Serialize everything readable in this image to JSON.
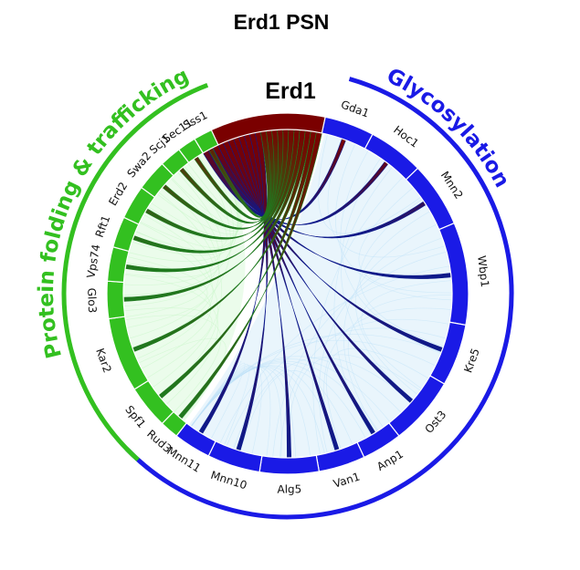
{
  "title": "Erd1 PSN",
  "focus": {
    "label": "Erd1",
    "color": "#7a0000"
  },
  "groups": [
    {
      "label": "Glycosylation",
      "color": "#1a1ae6",
      "chord_color": "#0d1a8c",
      "bg_color": "#bfe2f7",
      "nodes": [
        "Gda1",
        "Hoc1",
        "Mnn2",
        "Wbp1",
        "Kre5",
        "Ost3",
        "Anp1",
        "Van1",
        "Alg5",
        "Mnn10",
        "Mnn11"
      ]
    },
    {
      "label": "Protein folding & trafficking",
      "color": "#33c020",
      "chord_color": "#1f7a1f",
      "bg_color": "#c6f5c6",
      "nodes": [
        "Rud3",
        "Spf1",
        "Kar2",
        "Glo3",
        "Vps74",
        "Rft1",
        "Erd2",
        "Swa2",
        "Scj1",
        "Sec11",
        "Sss1"
      ]
    }
  ]
}
